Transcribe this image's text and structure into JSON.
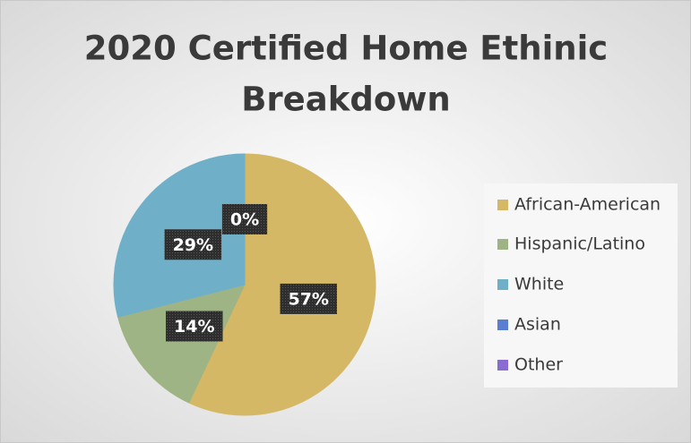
{
  "chart_data": {
    "type": "pie",
    "title": [
      "2020 Certified Home Ethinic",
      "Breakdown"
    ],
    "categories": [
      "African-American",
      "Hispanic/Latino",
      "White",
      "Asian",
      "Other"
    ],
    "values": [
      57,
      14,
      29,
      0,
      0
    ],
    "value_labels": [
      "57%",
      "14%",
      "29%",
      "0%",
      null
    ],
    "colors": [
      "#d4b866",
      "#9fb485",
      "#6fb0c8",
      "#5b7fd0",
      "#8a6bd1"
    ],
    "legend": "right"
  }
}
